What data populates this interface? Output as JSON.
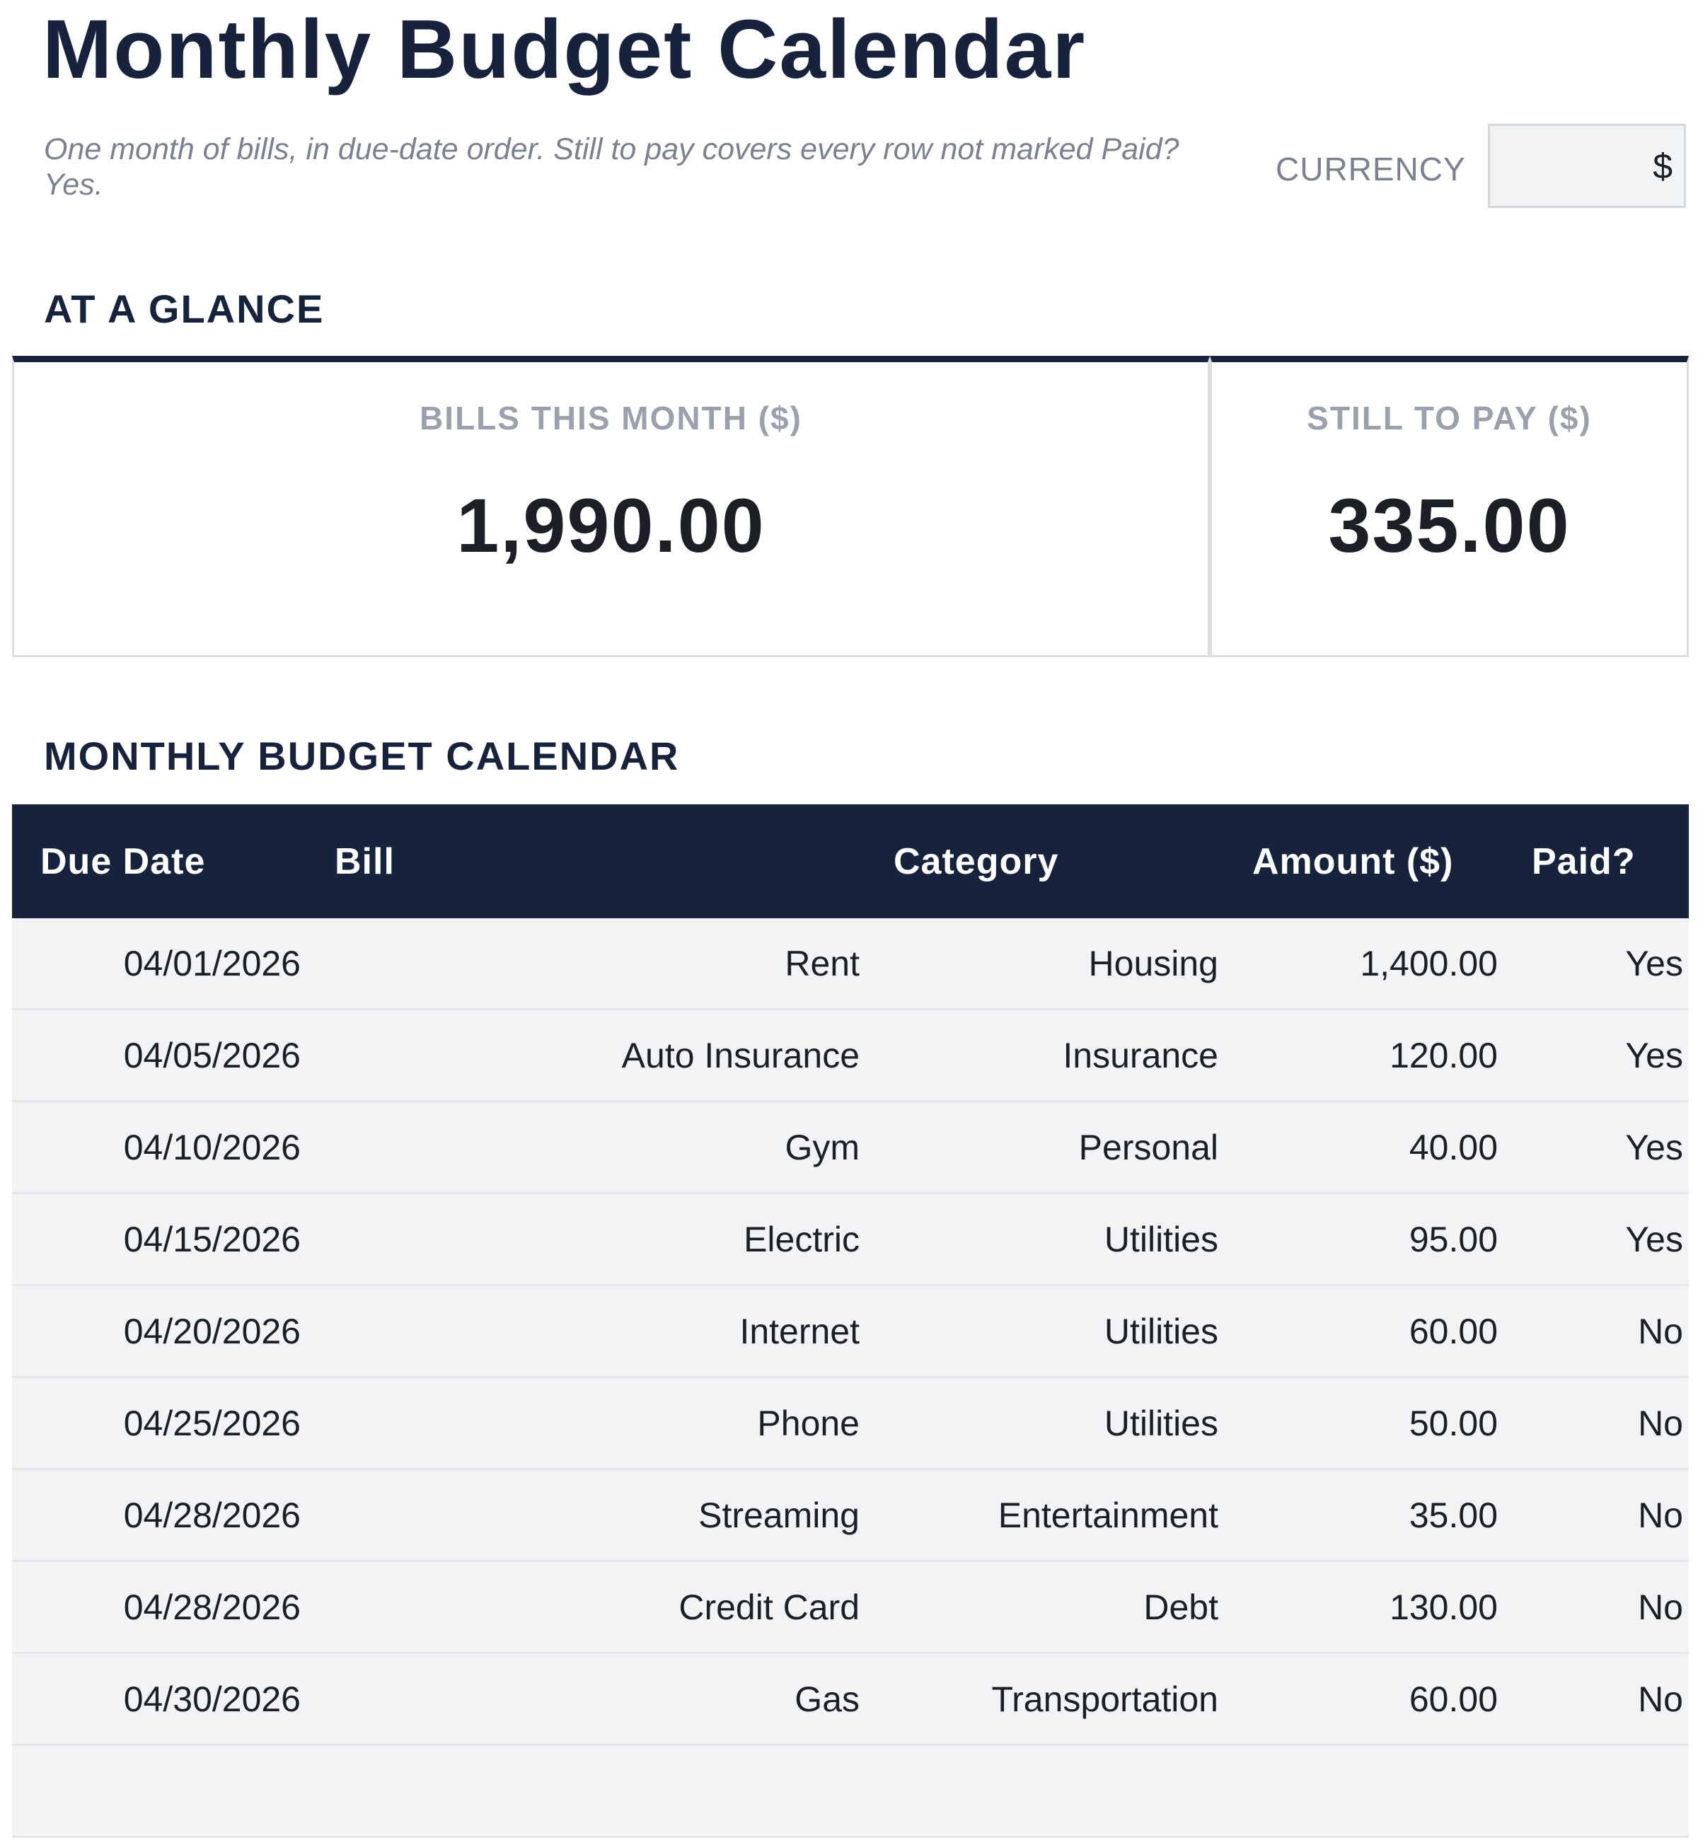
{
  "header": {
    "title": "Monthly Budget Calendar",
    "subtitle": "One month of bills, in due-date order. Still to pay covers every row not marked Paid? Yes.",
    "currency_label": "CURRENCY",
    "currency": "$"
  },
  "summary": {
    "heading": "AT A GLANCE",
    "cards": [
      {
        "label": "BILLS THIS MONTH ($)",
        "value": "1,990.00"
      },
      {
        "label": "STILL TO PAY ($)",
        "value": "335.00"
      }
    ]
  },
  "table": {
    "heading": "MONTHLY BUDGET CALENDAR",
    "columns": [
      "Due Date",
      "Bill",
      "Category",
      "Amount ($)",
      "Paid?"
    ],
    "rows": [
      [
        "04/01/2026",
        "Rent",
        "Housing",
        "1,400.00",
        "Yes"
      ],
      [
        "04/05/2026",
        "Auto Insurance",
        "Insurance",
        "120.00",
        "Yes"
      ],
      [
        "04/10/2026",
        "Gym",
        "Personal",
        "40.00",
        "Yes"
      ],
      [
        "04/15/2026",
        "Electric",
        "Utilities",
        "95.00",
        "Yes"
      ],
      [
        "04/20/2026",
        "Internet",
        "Utilities",
        "60.00",
        "No"
      ],
      [
        "04/25/2026",
        "Phone",
        "Utilities",
        "50.00",
        "No"
      ],
      [
        "04/28/2026",
        "Streaming",
        "Entertainment",
        "35.00",
        "No"
      ],
      [
        "04/28/2026",
        "Credit Card",
        "Debt",
        "130.00",
        "No"
      ],
      [
        "04/30/2026",
        "Gas",
        "Transportation",
        "60.00",
        "No"
      ]
    ]
  }
}
